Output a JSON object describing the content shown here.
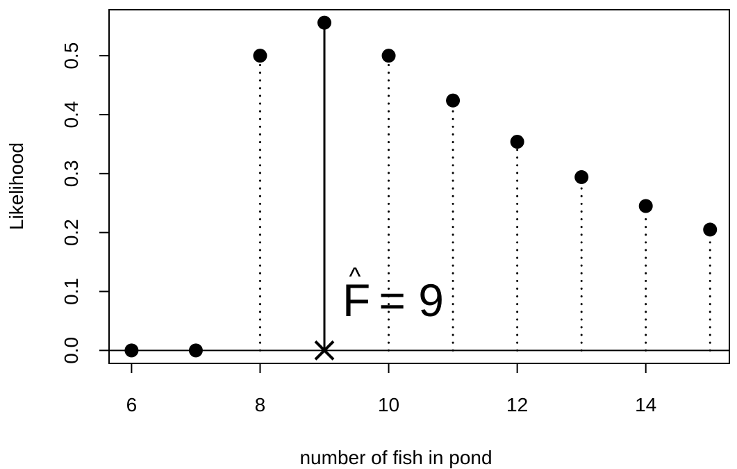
{
  "chart_data": {
    "type": "scatter",
    "xlabel": "number of fish in pond",
    "ylabel": "Likelihood",
    "xlim": [
      5.65,
      15.3
    ],
    "ylim": [
      -0.022,
      0.578
    ],
    "x_ticks": [
      6,
      8,
      10,
      12,
      14
    ],
    "x_tick_labels": [
      "6",
      "8",
      "10",
      "12",
      "14"
    ],
    "y_ticks": [
      0.0,
      0.1,
      0.2,
      0.3,
      0.4,
      0.5
    ],
    "y_tick_labels": [
      "0.0",
      "0.1",
      "0.2",
      "0.3",
      "0.4",
      "0.5"
    ],
    "baseline": 0,
    "x": [
      6,
      7,
      8,
      9,
      10,
      11,
      12,
      13,
      14,
      15
    ],
    "values": [
      0,
      0,
      0.5,
      0.556,
      0.5,
      0.424,
      0.354,
      0.294,
      0.245,
      0.205
    ],
    "highlight": {
      "x": 9,
      "marker": "cross"
    },
    "annotation": {
      "hat": "^",
      "symbol": "F",
      "text": " = 9"
    },
    "colors": {
      "points": "#000000",
      "lines": "#000000"
    }
  }
}
